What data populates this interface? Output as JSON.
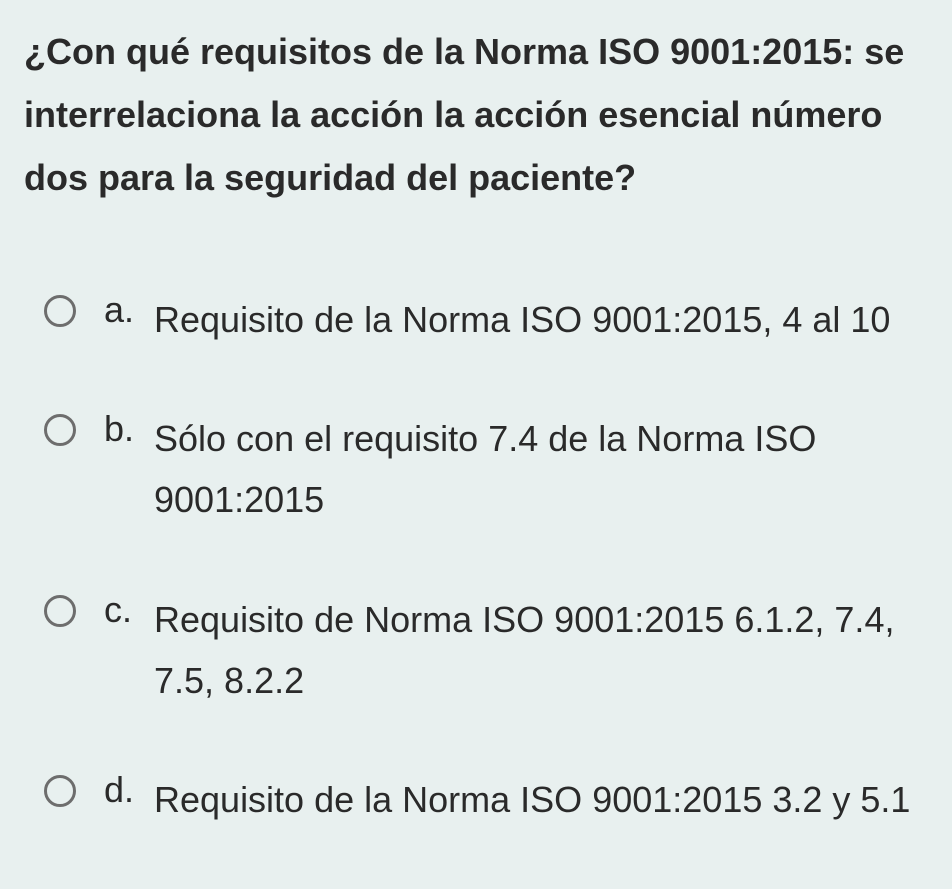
{
  "colors": {
    "background": "#e8f0ef",
    "text": "#2a2a2a",
    "radio_border": "#6d6d6d"
  },
  "typography": {
    "question_fontsize": 36,
    "question_fontweight": "bold",
    "option_fontsize": 36,
    "line_height": 1.7
  },
  "question": {
    "text": "¿Con qué requisitos de la Norma ISO 9001:2015: se interrelaciona la acción la acción esencial número dos para la seguridad del paciente?"
  },
  "options": [
    {
      "letter": "a.",
      "text": "Requisito de la Norma ISO 9001:2015, 4 al 10",
      "checked": false
    },
    {
      "letter": "b.",
      "text": "Sólo con el requisito 7.4 de la Norma ISO 9001:2015",
      "checked": false
    },
    {
      "letter": "c.",
      "text": "Requisito de Norma ISO 9001:2015 6.1.2, 7.4, 7.5, 8.2.2",
      "checked": false
    },
    {
      "letter": "d.",
      "text": "Requisito de la Norma ISO 9001:2015 3.2 y 5.1",
      "checked": false
    }
  ]
}
